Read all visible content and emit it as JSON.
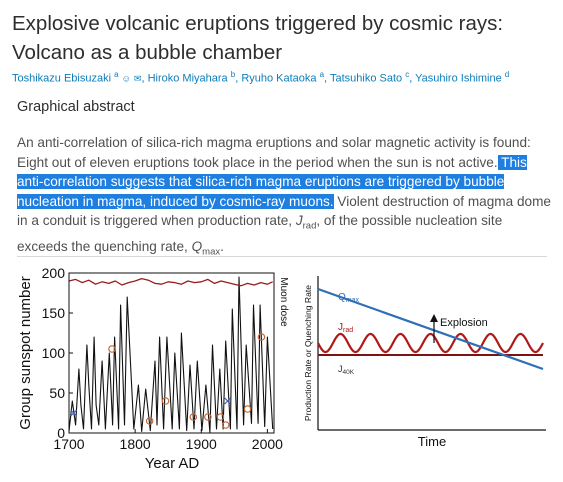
{
  "article": {
    "title_line1": "Explosive volcanic eruptions triggered by cosmic rays:",
    "title_line2": "Volcano as a bubble chamber",
    "authors": [
      {
        "name": "Toshikazu Ebisuzaki",
        "aff": "a"
      },
      {
        "name": "Hiroko Miyahara",
        "aff": "b"
      },
      {
        "name": "Ryuho Kataoka",
        "aff": "a"
      },
      {
        "name": "Tatsuhiko Sato",
        "aff": "c"
      },
      {
        "name": "Yasuhiro Ishimine",
        "aff": "d"
      }
    ],
    "section_heading": "Graphical abstract",
    "abstract": {
      "part1": "An anti-correlation of silica-rich magma eruptions and solar magnetic activity is found: Eight out of eleven eruptions took place in the period when the sun is not active.",
      "highlighted": " This anti-correlation suggests that silica-rich magma eruptions are triggered by bubble nucleation in magma, induced by cosmic-ray muons.",
      "part2": " Violent destruction of magma dome in a conduit is triggered when production rate, ",
      "jrad_symbol": "J",
      "jrad_sub": "rad",
      "part3": ", of the possible nucleation site exceeds the quenching rate, ",
      "qmax_symbol": "Q",
      "qmax_sub": "max",
      "part4": "."
    }
  },
  "chart_data": [
    {
      "type": "line",
      "xlabel": "Year AD",
      "ylabel": "Group sunspot number",
      "ylabel_right": "Muon dose",
      "xlim": [
        1700,
        2010
      ],
      "ylim": [
        0,
        200
      ],
      "x_ticks": [
        1700,
        1800,
        1900,
        2000
      ],
      "y_ticks": [
        0,
        50,
        100,
        150,
        200
      ],
      "series": [
        {
          "values_x": [
            1700,
            1705,
            1710,
            1715,
            1718,
            1722,
            1727,
            1730,
            1734,
            1738,
            1741,
            1745,
            1750,
            1755,
            1761,
            1766,
            1769,
            1775,
            1778,
            1784,
            1788,
            1798,
            1805,
            1810,
            1816,
            1823,
            1830,
            1833,
            1837,
            1843,
            1848,
            1856,
            1860,
            1867,
            1870,
            1878,
            1883,
            1889,
            1894,
            1901,
            1907,
            1913,
            1917,
            1923,
            1928,
            1933,
            1937,
            1944,
            1947,
            1954,
            1957,
            1964,
            1968,
            1976,
            1979,
            1986,
            1989,
            1996,
            2000,
            2008
          ],
          "values_y": [
            2,
            40,
            10,
            80,
            35,
            5,
            110,
            60,
            5,
            120,
            35,
            10,
            90,
            5,
            100,
            10,
            120,
            5,
            160,
            10,
            170,
            5,
            60,
            2,
            55,
            3,
            90,
            10,
            120,
            5,
            120,
            5,
            100,
            5,
            125,
            3,
            85,
            5,
            90,
            3,
            60,
            1,
            110,
            5,
            80,
            5,
            115,
            5,
            155,
            5,
            195,
            10,
            110,
            12,
            160,
            12,
            160,
            8,
            120,
            5
          ],
          "color": "#111111"
        },
        {
          "name_unprinted": true,
          "type": "muon-dose",
          "values_x": [
            1700,
            1710,
            1720,
            1730,
            1740,
            1750,
            1760,
            1770,
            1780,
            1790,
            1800,
            1810,
            1820,
            1830,
            1840,
            1850,
            1860,
            1870,
            1880,
            1890,
            1900,
            1910,
            1920,
            1930,
            1940,
            1950,
            1960,
            1970,
            1980,
            1990,
            2000,
            2008
          ],
          "values_y": [
            190,
            192,
            188,
            191,
            186,
            189,
            187,
            190,
            185,
            188,
            190,
            193,
            191,
            187,
            186,
            189,
            188,
            186,
            190,
            188,
            189,
            192,
            187,
            190,
            188,
            186,
            184,
            187,
            185,
            188,
            186,
            189
          ],
          "color": "#9b1b1b"
        }
      ],
      "eruptions": [
        {
          "year": 1707,
          "value": 25,
          "marker": "x"
        },
        {
          "year": 1765,
          "value": 105,
          "marker": "o"
        },
        {
          "year": 1822,
          "value": 15,
          "marker": "o"
        },
        {
          "year": 1846,
          "value": 40,
          "marker": "o"
        },
        {
          "year": 1888,
          "value": 20,
          "marker": "o"
        },
        {
          "year": 1910,
          "value": 20,
          "marker": "o"
        },
        {
          "year": 1929,
          "value": 20,
          "marker": "o"
        },
        {
          "year": 1937,
          "value": 10,
          "marker": "o"
        },
        {
          "year": 1940,
          "value": 40,
          "marker": "x"
        },
        {
          "year": 1970,
          "value": 30,
          "marker": "o"
        },
        {
          "year": 1991,
          "value": 120,
          "marker": "o"
        }
      ]
    },
    {
      "type": "diagram",
      "xlabel": "Time",
      "ylabel": "Production Rate or Quenching Rate",
      "labels": {
        "qmax": "Q",
        "qmax_sub": "max",
        "jrad": "J",
        "jrad_sub": "rad",
        "j40k": "J",
        "j40k_sub": "40K",
        "explosion": "Explosion"
      },
      "colors": {
        "qmax": "#2f6fb6",
        "jrad": "#b01818",
        "j40k": "#7a1414"
      }
    }
  ]
}
